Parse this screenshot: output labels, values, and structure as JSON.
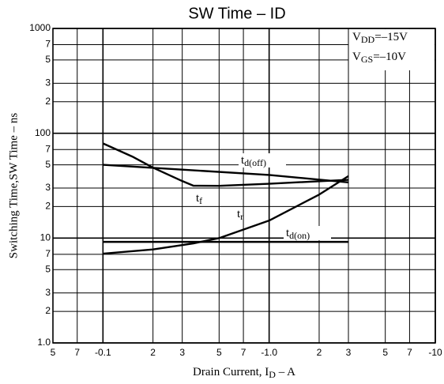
{
  "chart_data": {
    "type": "line",
    "title": "SW Time  –  ID",
    "xlabel": {
      "main": "Drain Current, I",
      "sub": "D",
      "tail": "  –  A"
    },
    "ylabel": "Switching Time,SW Time  –  ns",
    "conditions": [
      {
        "main": "V",
        "sub": "DD",
        "tail": "=–15V"
      },
      {
        "main": "V",
        "sub": "GS",
        "tail": "=–10V"
      }
    ],
    "xscale": "log",
    "yscale": "log",
    "grid": true,
    "xlim": [
      -0.05,
      -10
    ],
    "ylim": [
      1,
      1000
    ],
    "xticks": [
      {
        "value": -0.05,
        "label": "5"
      },
      {
        "value": -0.07,
        "label": "7"
      },
      -0.1,
      {
        "value": -0.2,
        "label": "2"
      },
      {
        "value": -0.3,
        "label": "3"
      },
      {
        "value": -0.5,
        "label": "5"
      },
      {
        "value": -0.7,
        "label": "7"
      },
      {
        "value": -1,
        "label": "-1.0"
      },
      {
        "value": -2,
        "label": "2"
      },
      {
        "value": -3,
        "label": "3"
      },
      {
        "value": -5,
        "label": "5"
      },
      {
        "value": -7,
        "label": "7"
      },
      -10
    ],
    "yticks": [
      1000,
      {
        "value": 700,
        "label": "7"
      },
      {
        "value": 500,
        "label": "5"
      },
      {
        "value": 300,
        "label": "3"
      },
      {
        "value": 200,
        "label": "2"
      },
      100,
      {
        "value": 70,
        "label": "7"
      },
      {
        "value": 50,
        "label": "5"
      },
      {
        "value": 30,
        "label": "3"
      },
      {
        "value": 20,
        "label": "2"
      },
      10,
      {
        "value": 7,
        "label": "7"
      },
      {
        "value": 5,
        "label": "5"
      },
      {
        "value": 3,
        "label": "3"
      },
      {
        "value": 2,
        "label": "2"
      },
      {
        "value": 1,
        "label": "1.0"
      }
    ],
    "series": [
      {
        "name": "t",
        "subscript": "d(off)",
        "color": "#000000",
        "x": [
          -0.1,
          -0.3,
          -1,
          -3
        ],
        "values": [
          50,
          45,
          40,
          34
        ]
      },
      {
        "name": "t",
        "subscript": "f",
        "color": "#000000",
        "x": [
          -0.1,
          -0.15,
          -0.2,
          -0.3,
          -0.35,
          -0.5,
          -1,
          -3
        ],
        "values": [
          80,
          60,
          47,
          35,
          31.6,
          31.5,
          33,
          36
        ]
      },
      {
        "name": "t",
        "subscript": "r",
        "color": "#000000",
        "x": [
          -0.1,
          -0.2,
          -0.35,
          -0.5,
          -1,
          -2,
          -3
        ],
        "values": [
          7.1,
          7.8,
          8.9,
          10,
          14.7,
          26,
          39
        ]
      },
      {
        "name": "t",
        "subscript": "d(on)",
        "color": "#000000",
        "x": [
          -0.1,
          -3
        ],
        "values": [
          9.2,
          9.2
        ]
      }
    ]
  }
}
